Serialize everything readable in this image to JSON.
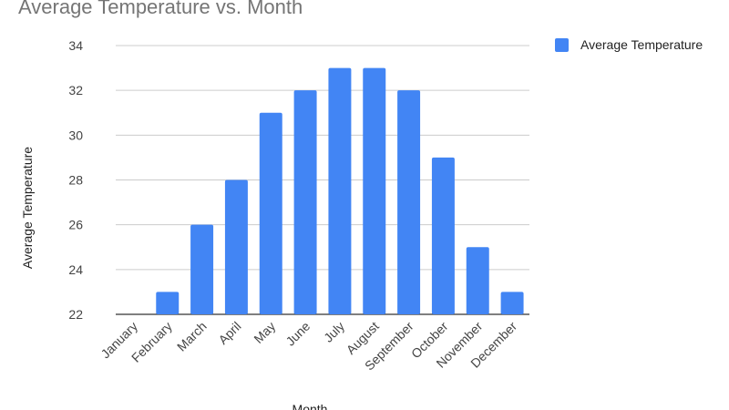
{
  "chart_data": {
    "type": "bar",
    "title": "Average Temperature vs. Month",
    "xlabel": "Month",
    "ylabel": "Average Temperature",
    "categories": [
      "January",
      "February",
      "March",
      "April",
      "May",
      "June",
      "July",
      "August",
      "September",
      "October",
      "November",
      "December"
    ],
    "series": [
      {
        "name": "Average Temperature",
        "values": [
          22,
          23,
          26,
          28,
          31,
          32,
          33,
          33,
          32,
          29,
          25,
          23
        ]
      }
    ],
    "ylim": [
      22,
      34
    ],
    "yticks": [
      22,
      24,
      26,
      28,
      30,
      32,
      34
    ],
    "grid": true,
    "legend": "top-right",
    "colors": {
      "bar": "#4285f4",
      "grid": "#cccccc",
      "baseline": "#333333",
      "tick_text": "#444444",
      "title_text": "#757575",
      "axis_title_text": "#222222"
    }
  }
}
